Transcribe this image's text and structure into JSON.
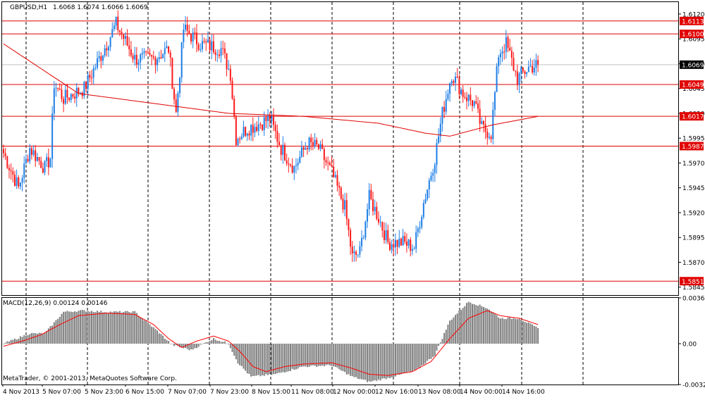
{
  "header": {
    "symbol": "GBPUSD,H1",
    "ohlc": "1.6068 1.6074 1.6066 1.6069"
  },
  "copyright": "MetaTrader, © 2001-2013, MetaQuotes Software Corp.",
  "colors": {
    "bull": "#1e7ee6",
    "bear": "#ff1a1a",
    "level_line": "#e00000",
    "moving_average": "#e00000",
    "macd_histogram": "#808080",
    "macd_signal": "#ff0000",
    "grid": "#000000",
    "current_price_line": "#c0c0c0"
  },
  "chart_data": [
    {
      "type": "candlestick",
      "title": "GBPUSD,H1",
      "ylim": [
        1.5837,
        1.6132
      ],
      "y_ticks": [
        "1.6120",
        "1.6095",
        "1.6070",
        "1.6045",
        "1.6020",
        "1.5995",
        "1.5970",
        "1.5945",
        "1.5920",
        "1.5895",
        "1.5870",
        "1.5845"
      ],
      "x_labels": [
        "4 Nov 2013",
        "5 Nov 07:00",
        "5 Nov 23:00",
        "6 Nov 15:00",
        "7 Nov 07:00",
        "7 Nov 23:00",
        "8 Nov 15:00",
        "11 Nov 08:00",
        "12 Nov 00:00",
        "12 Nov 16:00",
        "13 Nov 08:00",
        "14 Nov 00:00",
        "14 Nov 16:00"
      ],
      "horizontal_levels": [
        "1.6113",
        "1.6100",
        "1.6049",
        "1.6017",
        "1.5987",
        "1.5851"
      ],
      "current_price": "1.6069",
      "anchors": [
        [
          0,
          1.598
        ],
        [
          8,
          1.5945
        ],
        [
          14,
          1.5985
        ],
        [
          22,
          1.5965
        ],
        [
          25,
          1.5975
        ],
        [
          27,
          1.605
        ],
        [
          32,
          1.6035
        ],
        [
          43,
          1.6045
        ],
        [
          55,
          1.609
        ],
        [
          60,
          1.611
        ],
        [
          70,
          1.6075
        ],
        [
          80,
          1.6075
        ],
        [
          88,
          1.6085
        ],
        [
          92,
          1.602
        ],
        [
          96,
          1.6105
        ],
        [
          105,
          1.609
        ],
        [
          116,
          1.6085
        ],
        [
          121,
          1.606
        ],
        [
          124,
          1.5995
        ],
        [
          130,
          1.6005
        ],
        [
          137,
          1.601
        ],
        [
          142,
          1.6015
        ],
        [
          148,
          1.5985
        ],
        [
          155,
          1.5965
        ],
        [
          162,
          1.599
        ],
        [
          168,
          1.5985
        ],
        [
          175,
          1.596
        ],
        [
          182,
          1.5925
        ],
        [
          186,
          1.5875
        ],
        [
          190,
          1.588
        ],
        [
          195,
          1.5935
        ],
        [
          200,
          1.5915
        ],
        [
          205,
          1.589
        ],
        [
          213,
          1.589
        ],
        [
          219,
          1.5885
        ],
        [
          224,
          1.593
        ],
        [
          230,
          1.5975
        ],
        [
          234,
          1.602
        ],
        [
          239,
          1.606
        ],
        [
          245,
          1.604
        ],
        [
          251,
          1.603
        ],
        [
          255,
          1.6005
        ],
        [
          260,
          1.6
        ],
        [
          264,
          1.608
        ],
        [
          268,
          1.609
        ],
        [
          274,
          1.6055
        ],
        [
          280,
          1.6066
        ],
        [
          285,
          1.6069
        ]
      ],
      "moving_average_points": [
        [
          0,
          1.609
        ],
        [
          40,
          1.604
        ],
        [
          80,
          1.603
        ],
        [
          120,
          1.602
        ],
        [
          160,
          1.6017
        ],
        [
          200,
          1.601
        ],
        [
          225,
          1.6
        ],
        [
          238,
          1.5997
        ],
        [
          260,
          1.6008
        ],
        [
          285,
          1.6017
        ]
      ]
    },
    {
      "type": "macd",
      "label": "MACD(12,26,9) 0.00124 0.00146",
      "ylim": [
        -0.00321,
        0.0036
      ],
      "y_ticks": [
        "0.0036",
        "0.00",
        "-0.00321"
      ],
      "histogram_points": [
        [
          0,
          0.0
        ],
        [
          14,
          0.0008
        ],
        [
          22,
          0.0008
        ],
        [
          32,
          0.0025
        ],
        [
          42,
          0.0026
        ],
        [
          55,
          0.0025
        ],
        [
          70,
          0.0025
        ],
        [
          82,
          0.001
        ],
        [
          90,
          -0.0001
        ],
        [
          100,
          -0.0005
        ],
        [
          112,
          0.0004
        ],
        [
          120,
          0.0
        ],
        [
          125,
          -0.0015
        ],
        [
          132,
          -0.0026
        ],
        [
          145,
          -0.0024
        ],
        [
          160,
          -0.0018
        ],
        [
          175,
          -0.0017
        ],
        [
          186,
          -0.0026
        ],
        [
          195,
          -0.003
        ],
        [
          205,
          -0.0027
        ],
        [
          220,
          -0.0021
        ],
        [
          230,
          -0.0009
        ],
        [
          238,
          0.0018
        ],
        [
          248,
          0.0033
        ],
        [
          258,
          0.0028
        ],
        [
          265,
          0.002
        ],
        [
          275,
          0.002
        ],
        [
          285,
          0.0012
        ]
      ],
      "signal_points": [
        [
          0,
          -0.0002
        ],
        [
          10,
          0.0002
        ],
        [
          20,
          0.0007
        ],
        [
          30,
          0.0015
        ],
        [
          40,
          0.0022
        ],
        [
          55,
          0.0024
        ],
        [
          70,
          0.0023
        ],
        [
          80,
          0.0015
        ],
        [
          88,
          0.0004
        ],
        [
          95,
          -0.0003
        ],
        [
          103,
          0.0002
        ],
        [
          112,
          0.0006
        ],
        [
          120,
          0.0002
        ],
        [
          126,
          -0.0006
        ],
        [
          133,
          -0.0018
        ],
        [
          140,
          -0.0022
        ],
        [
          150,
          -0.0018
        ],
        [
          160,
          -0.0016
        ],
        [
          175,
          -0.0015
        ],
        [
          185,
          -0.0019
        ],
        [
          195,
          -0.0024
        ],
        [
          205,
          -0.0025
        ],
        [
          218,
          -0.0022
        ],
        [
          228,
          -0.0014
        ],
        [
          238,
          0.0004
        ],
        [
          248,
          0.002
        ],
        [
          258,
          0.0026
        ],
        [
          265,
          0.0022
        ],
        [
          275,
          0.002
        ],
        [
          285,
          0.0015
        ]
      ]
    }
  ]
}
